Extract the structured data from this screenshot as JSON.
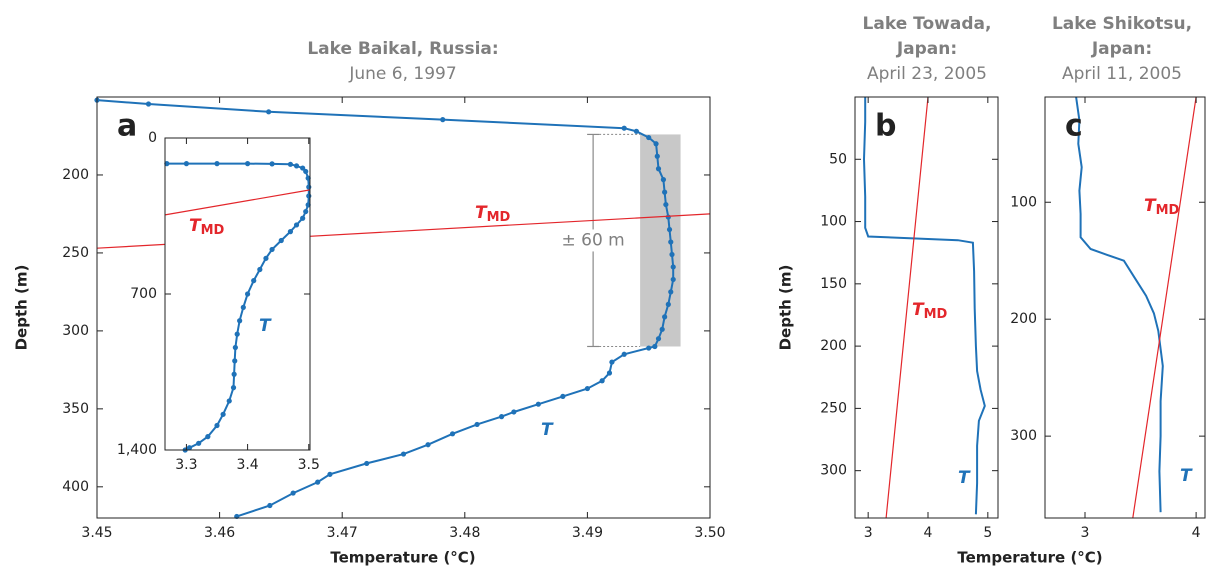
{
  "chart_data": [
    {
      "type": "line",
      "panel": "a",
      "title": [
        "Lake Baikal, Russia:"
      ],
      "subtitle": "June 6, 1997",
      "xlabel": "Temperature (°C)",
      "ylabel": "Depth (m)",
      "xlim": [
        3.45,
        3.5
      ],
      "ylim": [
        150,
        420
      ],
      "xticks": [
        3.45,
        3.46,
        3.47,
        3.48,
        3.49,
        {
          "value": 3.5,
          "label": "3.50"
        }
      ],
      "yticks": [
        200,
        250,
        300,
        350,
        400
      ],
      "y_inverted": true,
      "series": [
        {
          "name": "T",
          "color": "#1f72b8",
          "markers": true,
          "x": [
            3.45,
            3.4542,
            3.464,
            3.4782,
            3.493,
            3.494,
            3.495,
            3.4956,
            3.4957,
            3.4958,
            3.4962,
            3.4963,
            3.4964,
            3.4966,
            3.4967,
            3.4968,
            3.4969,
            3.497,
            3.497,
            3.4968,
            3.4966,
            3.4963,
            3.4961,
            3.4958,
            3.4955,
            3.495,
            3.493,
            3.492,
            3.4918,
            3.4912,
            3.49,
            3.488,
            3.486,
            3.484,
            3.483,
            3.481,
            3.479,
            3.477,
            3.475,
            3.472,
            3.469,
            3.468,
            3.466,
            3.4641,
            3.4614
          ],
          "values": [
            152,
            154.5,
            159.5,
            164.5,
            170,
            172,
            176,
            180,
            188,
            196,
            203,
            211,
            219,
            227,
            235,
            243,
            251,
            259,
            267,
            275,
            283,
            291,
            299,
            305,
            310,
            311,
            315,
            320,
            327,
            332,
            337,
            342,
            347,
            352,
            355,
            360,
            366,
            373,
            379,
            385,
            392,
            397,
            404,
            412,
            419
          ]
        },
        {
          "name": "T",
          "subscript": "MD",
          "color": "#e3262b",
          "x": [
            3.45,
            3.5
          ],
          "values": [
            247,
            225
          ]
        }
      ],
      "shade": {
        "x": [
          3.4943,
          3.4976
        ],
        "y": [
          174,
          310
        ],
        "color": "#c8c8c8"
      },
      "annotation": "± 60 m"
    },
    {
      "type": "line",
      "xlim": [
        3.265,
        3.502
      ],
      "ylim": [
        0,
        1400
      ],
      "xticks": [
        3.3,
        3.4,
        3.5
      ],
      "yticks": [
        0,
        700,
        {
          "value": 1400,
          "label": "1,400"
        }
      ],
      "y_inverted": true,
      "series": [
        {
          "name": "T",
          "color": "#1f72b8",
          "markers": true,
          "x": [
            3.268,
            3.3,
            3.35,
            3.4,
            3.44,
            3.47,
            3.48,
            3.49,
            3.495,
            3.499,
            3.5,
            3.5,
            3.499,
            3.495,
            3.49,
            3.48,
            3.47,
            3.455,
            3.44,
            3.43,
            3.42,
            3.41,
            3.4,
            3.393,
            3.387,
            3.383,
            3.38,
            3.379,
            3.378,
            3.377,
            3.37,
            3.36,
            3.35,
            3.335,
            3.32,
            3.305,
            3.298
          ],
          "values": [
            115,
            115,
            115,
            115,
            116,
            118,
            125,
            135,
            150,
            180,
            220,
            260,
            300,
            330,
            360,
            390,
            420,
            460,
            500,
            540,
            590,
            640,
            700,
            760,
            820,
            880,
            940,
            1000,
            1060,
            1120,
            1180,
            1240,
            1290,
            1340,
            1370,
            1390,
            1400
          ]
        },
        {
          "name": "T",
          "subscript": "MD",
          "color": "#e3262b",
          "x": [
            3.265,
            3.502
          ],
          "values": [
            345,
            233
          ]
        }
      ]
    },
    {
      "type": "line",
      "panel": "b",
      "title": [
        "Lake Towada,",
        "Japan:"
      ],
      "subtitle": "April 23, 2005",
      "xlabel": "Temperature (°C)",
      "ylabel": "Depth (m)",
      "xlim": [
        2.78,
        5.17
      ],
      "ylim": [
        0,
        338
      ],
      "xticks": [
        3,
        4,
        5
      ],
      "yticks": [
        50,
        100,
        150,
        200,
        250,
        300
      ],
      "y_inverted": true,
      "series": [
        {
          "name": "T",
          "color": "#1f72b8",
          "x": [
            2.95,
            2.95,
            2.93,
            2.95,
            2.95,
            3.0,
            4.5,
            4.75,
            4.77,
            4.78,
            4.8,
            4.82,
            4.88,
            4.95,
            4.85,
            4.82,
            4.82,
            4.8
          ],
          "values": [
            0,
            20,
            50,
            80,
            105,
            112,
            115,
            117,
            140,
            170,
            200,
            220,
            235,
            248,
            260,
            280,
            310,
            335
          ]
        },
        {
          "name": "T",
          "subscript": "MD",
          "color": "#e3262b",
          "x": [
            4.0,
            3.3
          ],
          "values": [
            0,
            338
          ]
        }
      ]
    },
    {
      "type": "line",
      "panel": "c",
      "title": [
        "Lake Shikotsu,",
        "Japan:"
      ],
      "subtitle": "April 11, 2005",
      "xlim": [
        2.64,
        4.08
      ],
      "ylim": [
        10,
        370
      ],
      "xticks": [
        3,
        4
      ],
      "yticks": [
        100,
        200,
        300
      ],
      "y_inverted": true,
      "series": [
        {
          "name": "T",
          "color": "#1f72b8",
          "x": [
            2.92,
            2.95,
            2.94,
            2.97,
            2.95,
            2.96,
            2.96,
            3.05,
            3.2,
            3.35,
            3.45,
            3.55,
            3.62,
            3.66,
            3.7,
            3.68,
            3.68,
            3.67,
            3.68
          ],
          "values": [
            10,
            30,
            50,
            70,
            90,
            110,
            130,
            140,
            145,
            150,
            165,
            180,
            195,
            210,
            240,
            270,
            300,
            330,
            365
          ]
        },
        {
          "name": "T",
          "subscript": "MD",
          "color": "#e3262b",
          "x": [
            4.0,
            3.43
          ],
          "values": [
            10,
            370
          ]
        }
      ]
    }
  ]
}
